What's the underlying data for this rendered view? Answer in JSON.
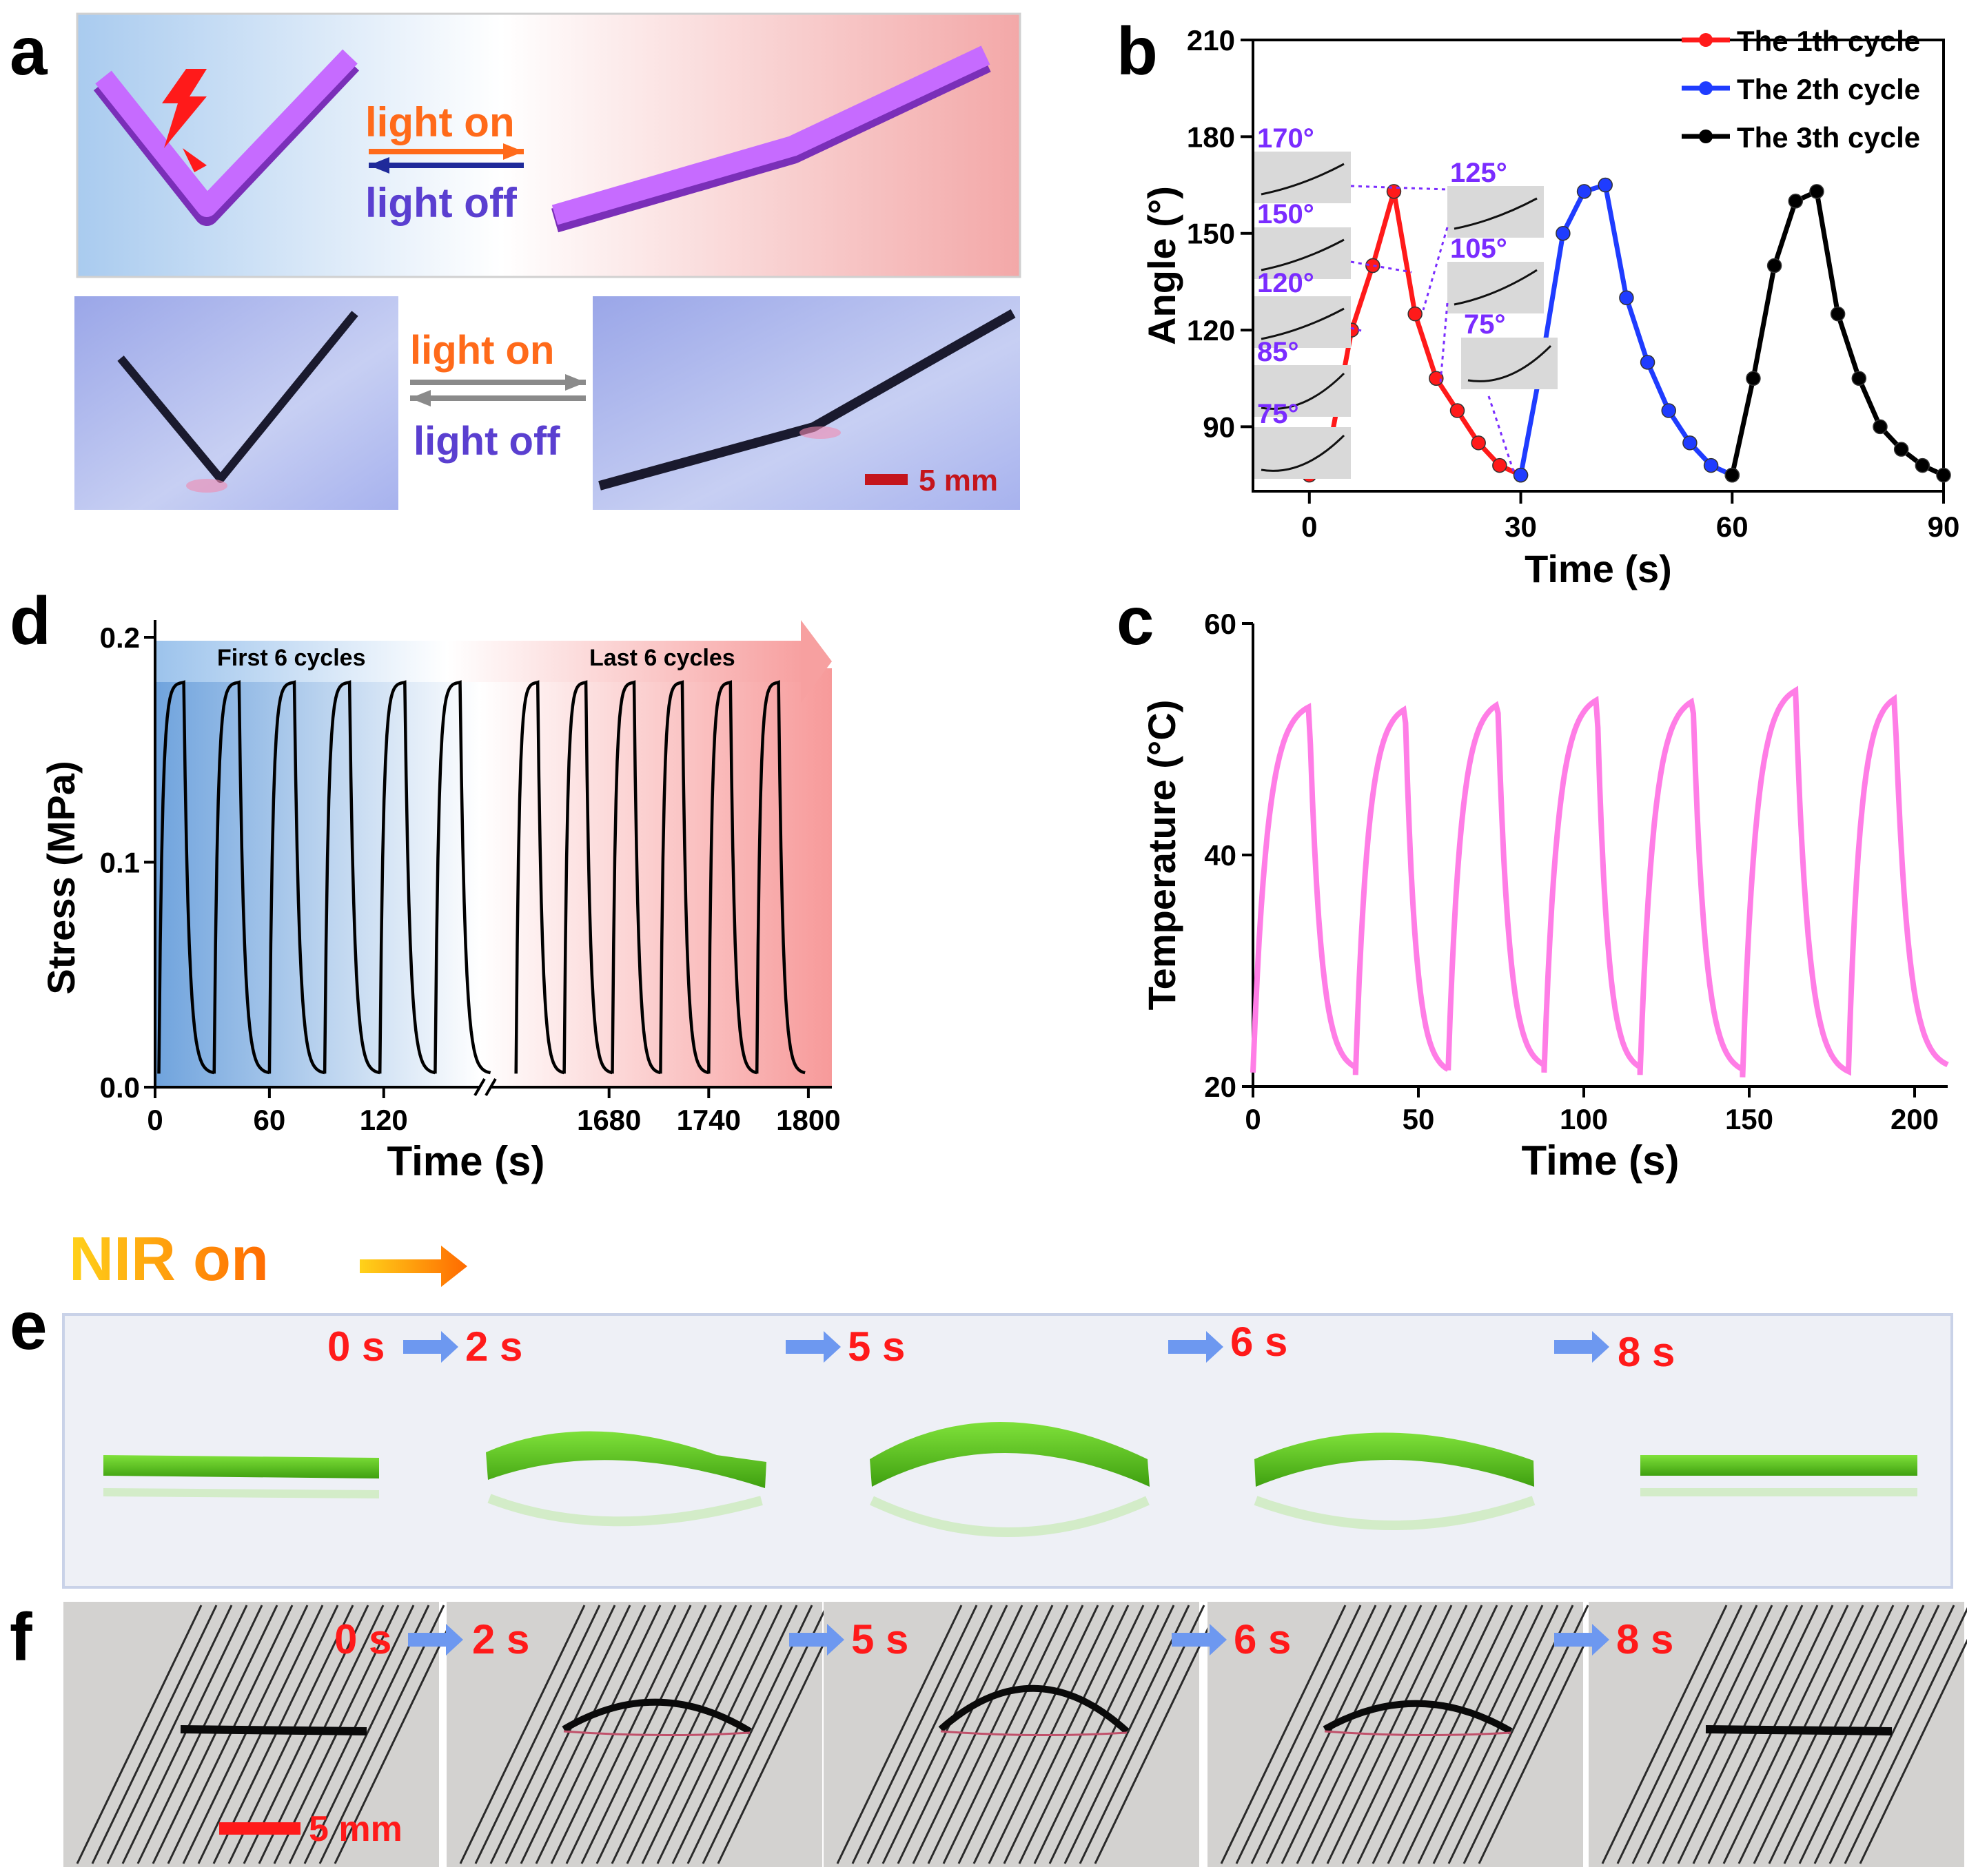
{
  "colors": {
    "purple": "#b24dff",
    "red": "#ff1a1a",
    "blue": "#1f3cff",
    "pink": "#ff7de6",
    "green": "#5fd01e",
    "orange": "#ff7a1a",
    "navy": "#1f2a9a",
    "label_purple": "#7a2cff"
  },
  "panel_a": {
    "letter": "a",
    "light_on": "light on",
    "light_off": "light off",
    "scale_bar": "5 mm"
  },
  "panel_b": {
    "letter": "b",
    "angle_labels": [
      "170°",
      "150°",
      "120°",
      "85°",
      "75°",
      "125°",
      "105°",
      "75°"
    ]
  },
  "panel_c": {
    "letter": "c"
  },
  "panel_d": {
    "letter": "d",
    "band_left": "First 6 cycles",
    "band_right": "Last 6 cycles"
  },
  "panel_e": {
    "letter": "e",
    "nir_label": "NIR on",
    "times": [
      "0 s",
      "2 s",
      "5 s",
      "6 s",
      "8 s"
    ]
  },
  "panel_f": {
    "letter": "f",
    "times": [
      "0 s",
      "2 s",
      "5 s",
      "6 s",
      "8 s"
    ],
    "scale_bar": "5 mm"
  },
  "chart_data": [
    {
      "panel": "b",
      "type": "line",
      "xlabel": "Time (s)",
      "ylabel": "Angle (°)",
      "xlim": [
        -8,
        90
      ],
      "ylim": [
        70,
        210
      ],
      "xticks": [
        0,
        30,
        60,
        90
      ],
      "yticks": [
        90,
        120,
        150,
        180,
        210
      ],
      "legend_position": "top-right",
      "series": [
        {
          "name": "The 1th cycle",
          "color": "#ff1a1a",
          "x": [
            0,
            3,
            6,
            9,
            12,
            15,
            18,
            21,
            24,
            27,
            30
          ],
          "y": [
            75,
            85,
            120,
            140,
            163,
            125,
            105,
            95,
            85,
            78,
            75
          ]
        },
        {
          "name": "The 2th cycle",
          "color": "#1f3cff",
          "x": [
            30,
            33,
            36,
            39,
            42,
            45,
            48,
            51,
            54,
            57,
            60
          ],
          "y": [
            75,
            110,
            150,
            163,
            165,
            130,
            110,
            95,
            85,
            78,
            75
          ]
        },
        {
          "name": "The 3th cycle",
          "color": "#000000",
          "x": [
            60,
            63,
            66,
            69,
            72,
            75,
            78,
            81,
            84,
            87,
            90
          ],
          "y": [
            75,
            105,
            140,
            160,
            163,
            125,
            105,
            90,
            83,
            78,
            75
          ]
        }
      ]
    },
    {
      "panel": "c",
      "type": "line",
      "xlabel": "Time (s)",
      "ylabel": "Temperature (°C)",
      "xlim": [
        0,
        210
      ],
      "ylim": [
        20,
        60
      ],
      "xticks": [
        0,
        50,
        100,
        150,
        200
      ],
      "yticks": [
        20,
        40,
        60
      ],
      "color": "#ff7de6",
      "cycles": [
        {
          "start": 0,
          "peak_time": 17,
          "end": 31,
          "min": 21.2,
          "max": 52.8
        },
        {
          "start": 31,
          "peak_time": 46,
          "end": 59,
          "min": 21.0,
          "max": 52.6
        },
        {
          "start": 59,
          "peak_time": 74,
          "end": 88,
          "min": 21.4,
          "max": 53.0
        },
        {
          "start": 88,
          "peak_time": 104,
          "end": 117,
          "min": 21.2,
          "max": 53.4
        },
        {
          "start": 117,
          "peak_time": 133,
          "end": 148,
          "min": 21.0,
          "max": 53.3
        },
        {
          "start": 148,
          "peak_time": 164,
          "end": 180,
          "min": 20.8,
          "max": 54.2
        },
        {
          "start": 180,
          "peak_time": 194,
          "end": 210,
          "min": 21.4,
          "max": 53.5
        }
      ]
    },
    {
      "panel": "d",
      "type": "line",
      "xlabel": "Time (s)",
      "ylabel": "Stress (MPa)",
      "ylim": [
        0.0,
        0.2
      ],
      "yticks": [
        "0.0",
        "0.1",
        "0.2"
      ],
      "xtick_labels": [
        "0",
        "60",
        "120",
        "1680",
        "1740",
        "1800"
      ],
      "axis_break": true,
      "first_segment": {
        "x_range": [
          0,
          170
        ],
        "ticks": [
          0,
          60,
          120
        ]
      },
      "second_segment": {
        "x_range": [
          1610,
          1810
        ],
        "ticks": [
          1680,
          1740,
          1800
        ]
      },
      "color": "#000000",
      "first_6_cycles": {
        "period": 29,
        "start": 2,
        "peak": 0.18,
        "min": 0.006
      },
      "last_6_cycles": {
        "period": 29,
        "start": 1624,
        "peak": 0.18,
        "min": 0.006
      }
    }
  ]
}
